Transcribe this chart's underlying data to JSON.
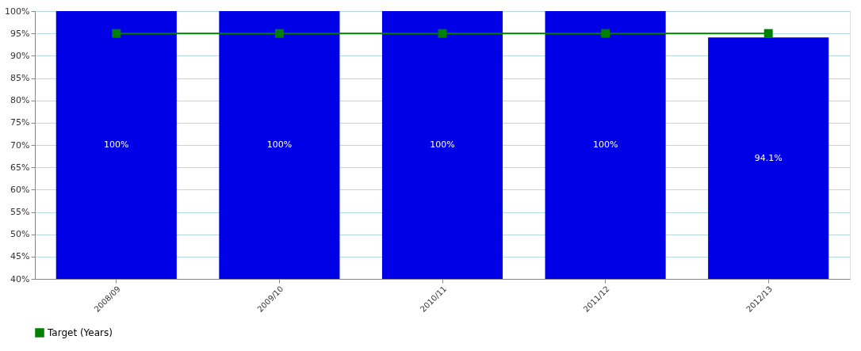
{
  "chart_data": {
    "type": "bar",
    "categories": [
      "2008/09",
      "2009/10",
      "2010/11",
      "2011/12",
      "2012/13"
    ],
    "series": [
      {
        "color": "#0000e6",
        "values": [
          100,
          100,
          100,
          100,
          94.1
        ],
        "value_labels": [
          "100%",
          "100%",
          "100%",
          "100%",
          "94.1%"
        ]
      },
      {
        "type": "line",
        "name": "Target (Years)",
        "color": "#008000",
        "values": [
          95,
          95,
          95,
          95,
          95
        ],
        "marker": "square"
      }
    ],
    "ylim": [
      40,
      100
    ],
    "yticks": [
      {
        "value": 40,
        "label": "40%"
      },
      {
        "value": 45,
        "label": "45%"
      },
      {
        "value": 50,
        "label": "50%"
      },
      {
        "value": 55,
        "label": "55%"
      },
      {
        "value": 60,
        "label": "60%"
      },
      {
        "value": 65,
        "label": "65%"
      },
      {
        "value": 70,
        "label": "70%"
      },
      {
        "value": 75,
        "label": "75%"
      },
      {
        "value": 80,
        "label": "80%"
      },
      {
        "value": 85,
        "label": "85%"
      },
      {
        "value": 90,
        "label": "90%"
      },
      {
        "value": 95,
        "label": "95%"
      },
      {
        "value": 100,
        "label": "100%"
      }
    ],
    "grid": "y",
    "legend": "bottom"
  }
}
